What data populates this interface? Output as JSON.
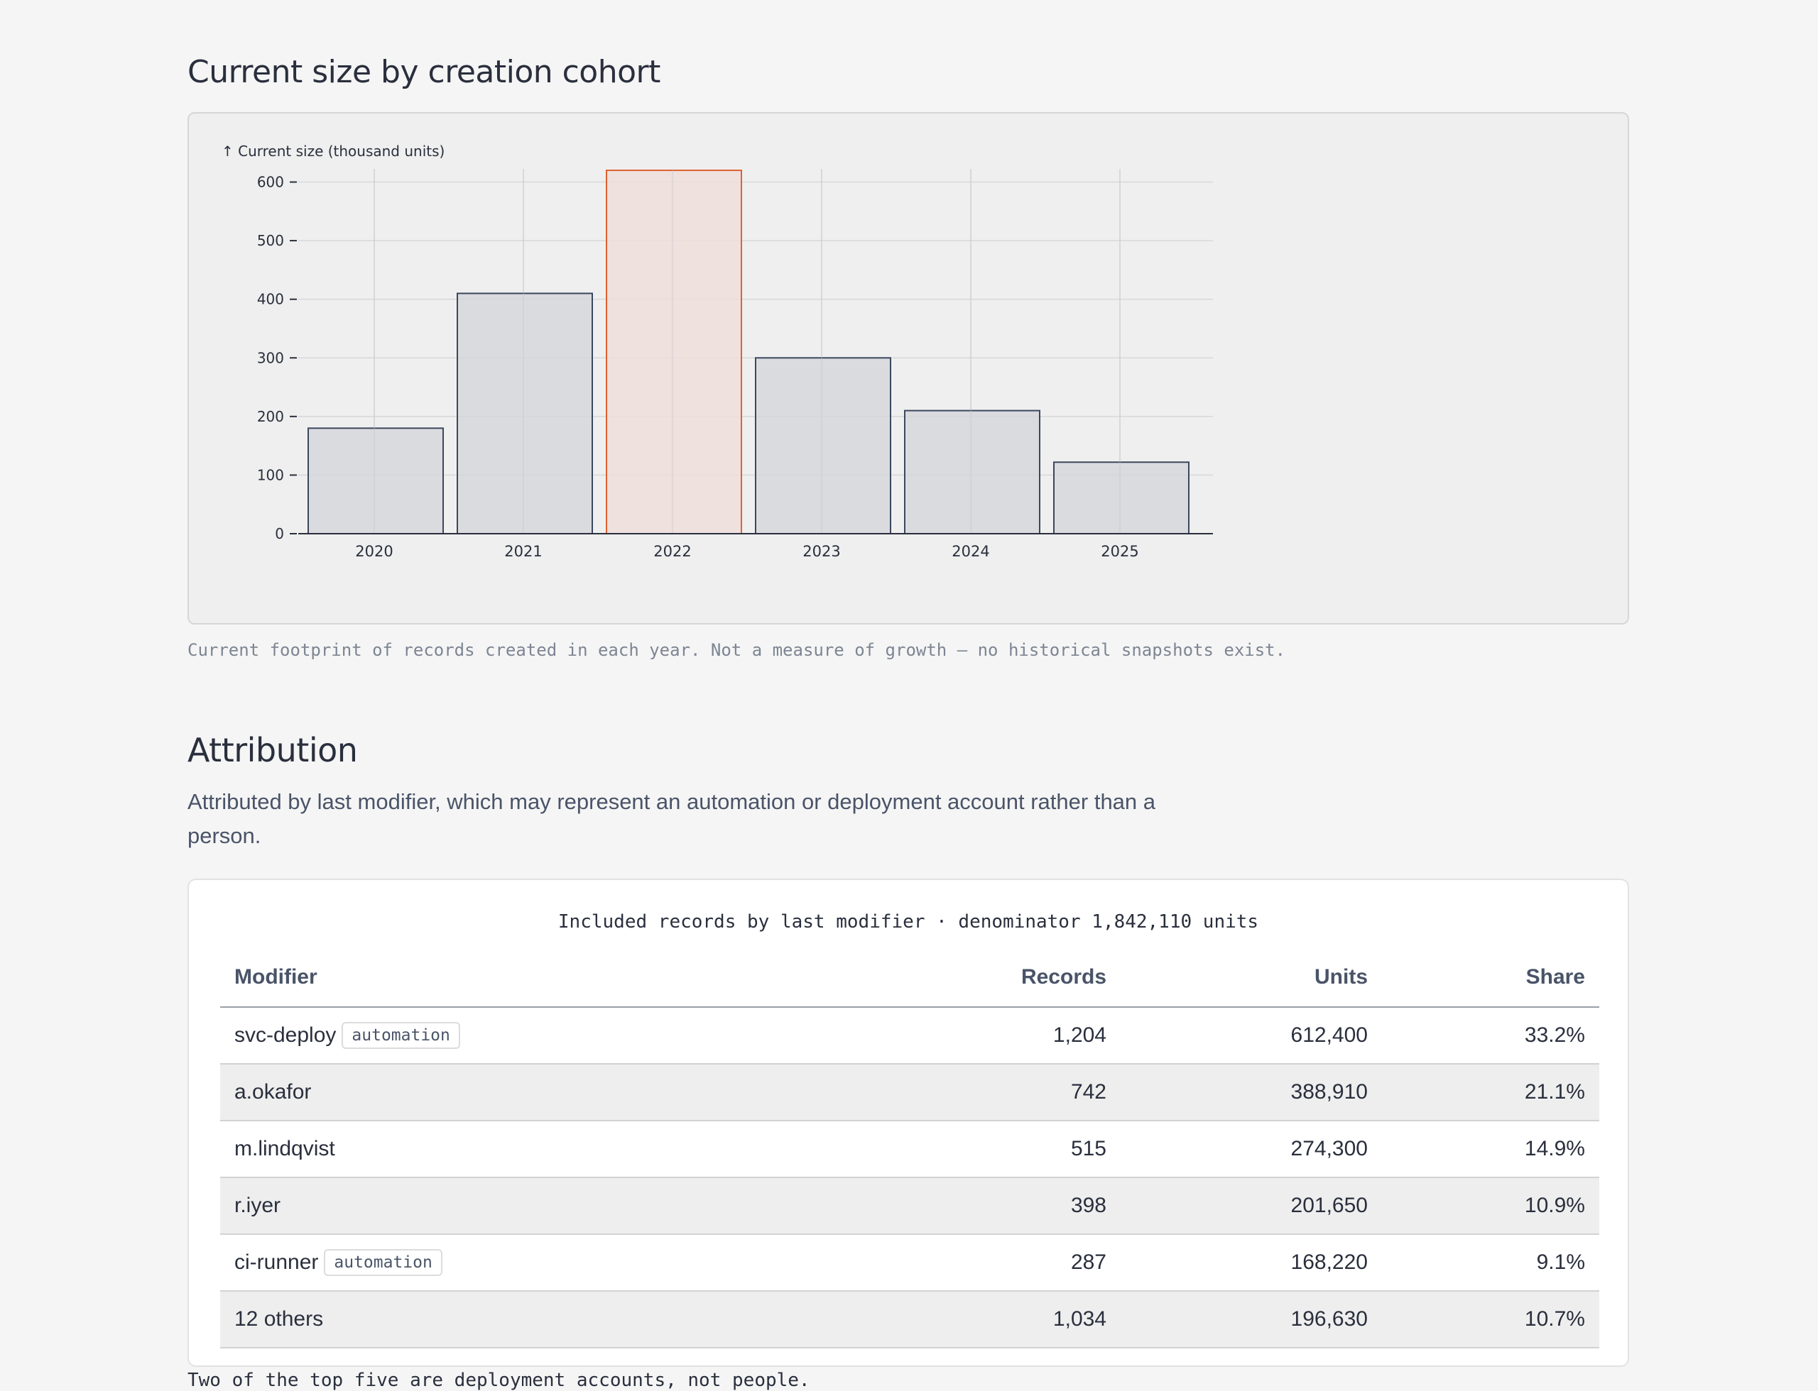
{
  "cohort_section": {
    "title": "Current size by creation cohort",
    "caption": "Current footprint of records created in each year. Not a measure of growth — no historical snapshots exist."
  },
  "chart_data": {
    "type": "bar",
    "ylabel": "↑ Current size (thousand units)",
    "categories": [
      "2020",
      "2021",
      "2022",
      "2023",
      "2024",
      "2025"
    ],
    "values": [
      180,
      410,
      620,
      300,
      210,
      122
    ],
    "highlight": "2022",
    "ylim": [
      0,
      620
    ],
    "yticks": [
      0,
      100,
      200,
      300,
      400,
      500,
      600
    ],
    "grid": true,
    "colors": {
      "bar_fill": "#d5d6db",
      "bar_stroke": "#3b475c",
      "highlight_fill": "#eddedb",
      "highlight_stroke": "#e0622f",
      "grid": "#d8d8d8"
    }
  },
  "attribution": {
    "title": "Attribution",
    "lede": "Attributed by last modifier, which may represent an automation or deployment account rather than a person.",
    "table_caption": "Included records by last modifier · denominator 1,842,110 units",
    "headers": {
      "modifier": "Modifier",
      "records": "Records",
      "units": "Units",
      "share": "Share"
    },
    "rows": [
      {
        "modifier": "svc-deploy",
        "tag": "automation",
        "records": "1,204",
        "units": "612,400",
        "share": "33.2%"
      },
      {
        "modifier": "a.okafor",
        "tag": "",
        "records": "742",
        "units": "388,910",
        "share": "21.1%"
      },
      {
        "modifier": "m.lindqvist",
        "tag": "",
        "records": "515",
        "units": "274,300",
        "share": "14.9%"
      },
      {
        "modifier": "r.iyer",
        "tag": "",
        "records": "398",
        "units": "201,650",
        "share": "10.9%"
      },
      {
        "modifier": "ci-runner",
        "tag": "automation",
        "records": "287",
        "units": "168,220",
        "share": "9.1%"
      },
      {
        "modifier": "12 others",
        "tag": "",
        "records": "1,034",
        "units": "196,630",
        "share": "10.7%"
      }
    ],
    "footnote": "Two of the top five are deployment accounts, not people."
  }
}
